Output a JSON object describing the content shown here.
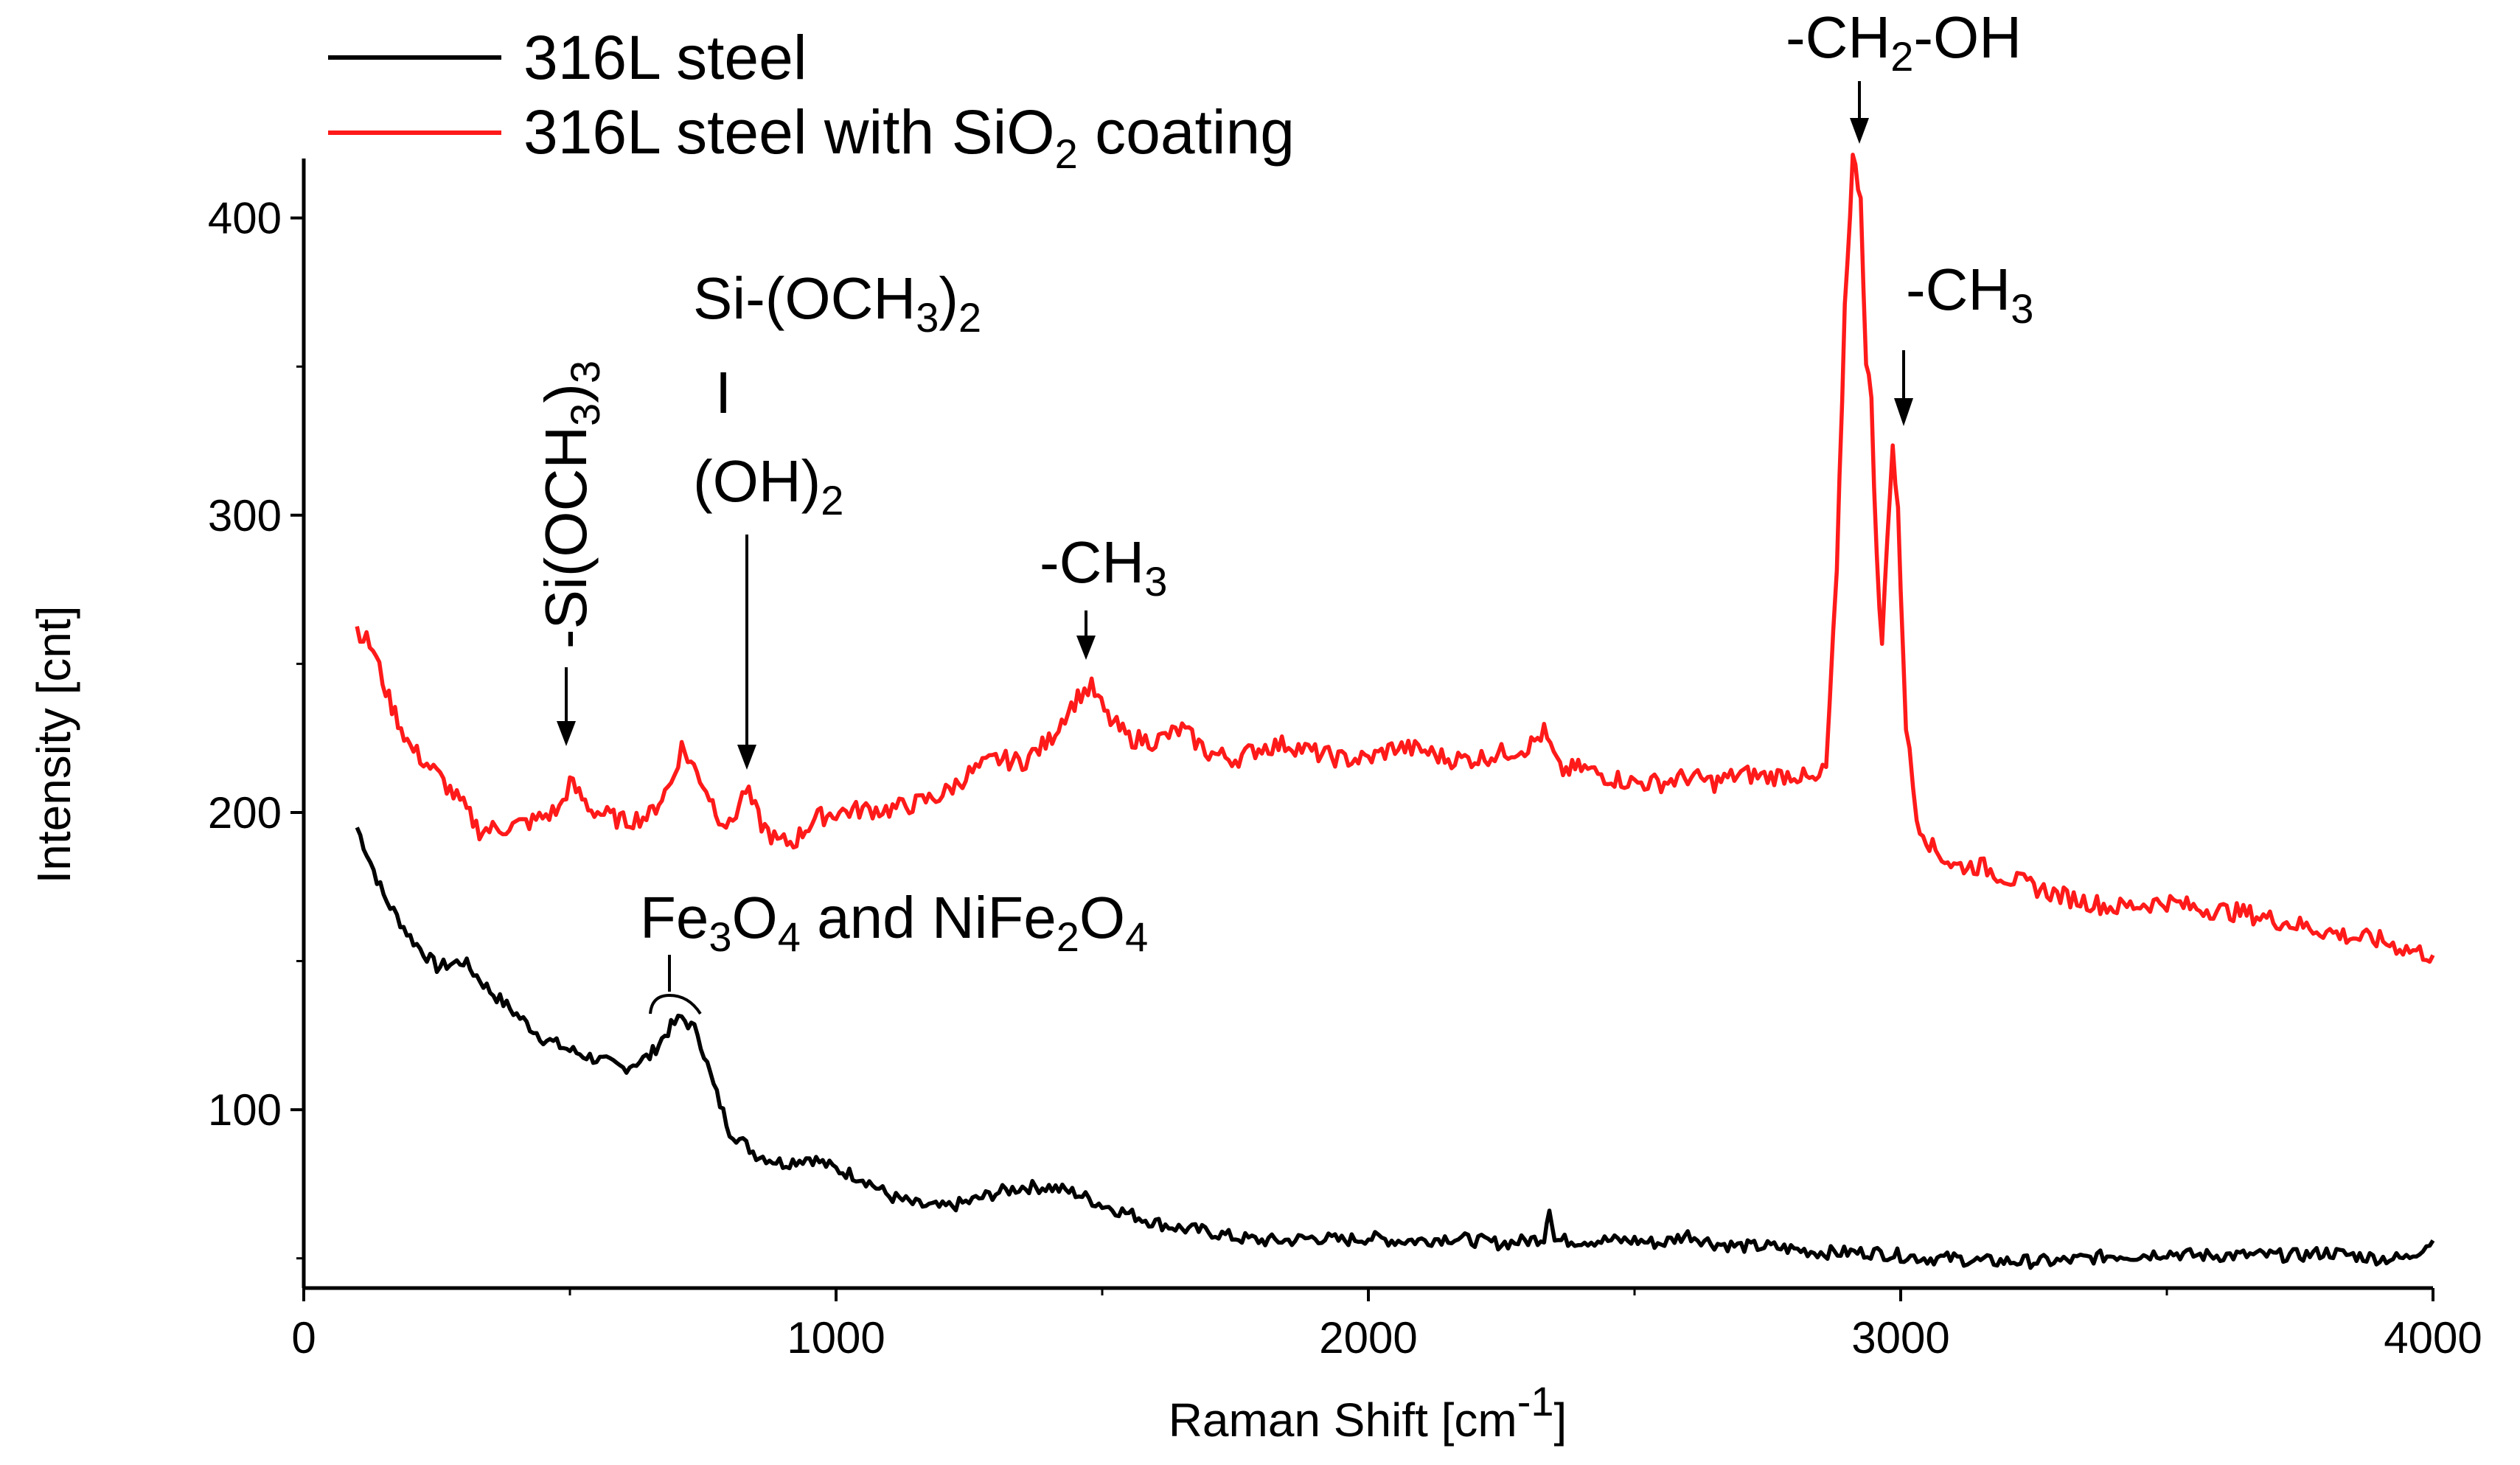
{
  "chart_data": {
    "type": "line",
    "xlabel": "Raman Shift [cm",
    "xlabel_sup": "-1",
    "xlabel_end": "]",
    "ylabel": "Intensity [cnt]",
    "xlim": [
      0,
      4000
    ],
    "ylim": [
      40,
      420
    ],
    "xticks": [
      0,
      1000,
      2000,
      3000,
      4000
    ],
    "yticks": [
      100,
      200,
      300,
      400
    ],
    "grid": false,
    "legend_position": "top-left",
    "colors": {
      "steel": "#000000",
      "coated": "#ff1a1a"
    },
    "legend": {
      "steel": "316L steel",
      "coated_pre": "316L steel with SiO",
      "coated_sub": "2",
      "coated_post": " coating"
    },
    "series": [
      {
        "name": "316L steel",
        "color": "#000000",
        "points": [
          [
            100,
            195
          ],
          [
            150,
            172
          ],
          [
            200,
            158
          ],
          [
            250,
            148
          ],
          [
            300,
            150
          ],
          [
            350,
            140
          ],
          [
            400,
            132
          ],
          [
            450,
            124
          ],
          [
            500,
            120
          ],
          [
            550,
            117
          ],
          [
            600,
            114
          ],
          [
            650,
            118
          ],
          [
            690,
            128
          ],
          [
            710,
            131
          ],
          [
            740,
            126
          ],
          [
            770,
            108
          ],
          [
            800,
            93
          ],
          [
            850,
            85
          ],
          [
            900,
            82
          ],
          [
            950,
            84
          ],
          [
            1000,
            80
          ],
          [
            1050,
            77
          ],
          [
            1100,
            71
          ],
          [
            1150,
            68
          ],
          [
            1200,
            67
          ],
          [
            1250,
            69
          ],
          [
            1300,
            72
          ],
          [
            1350,
            74
          ],
          [
            1400,
            74
          ],
          [
            1450,
            72
          ],
          [
            1500,
            68
          ],
          [
            1550,
            65
          ],
          [
            1600,
            62
          ],
          [
            1650,
            60
          ],
          [
            1700,
            59
          ],
          [
            1750,
            57
          ],
          [
            1800,
            56
          ],
          [
            1850,
            56
          ],
          [
            1900,
            57
          ],
          [
            1950,
            56
          ],
          [
            2000,
            57
          ],
          [
            2050,
            56
          ],
          [
            2100,
            56
          ],
          [
            2150,
            57
          ],
          [
            2200,
            56
          ],
          [
            2250,
            55
          ],
          [
            2300,
            56
          ],
          [
            2330,
            57
          ],
          [
            2340,
            68
          ],
          [
            2350,
            56
          ],
          [
            2400,
            56
          ],
          [
            2450,
            56
          ],
          [
            2500,
            56
          ],
          [
            2550,
            55
          ],
          [
            2600,
            58
          ],
          [
            2650,
            55
          ],
          [
            2700,
            54
          ],
          [
            2750,
            54
          ],
          [
            2800,
            53
          ],
          [
            2850,
            52
          ],
          [
            2900,
            52
          ],
          [
            2950,
            52
          ],
          [
            3000,
            51
          ],
          [
            3050,
            50
          ],
          [
            3100,
            50
          ],
          [
            3150,
            49
          ],
          [
            3200,
            49
          ],
          [
            3250,
            49
          ],
          [
            3300,
            49
          ],
          [
            3350,
            50
          ],
          [
            3400,
            51
          ],
          [
            3450,
            51
          ],
          [
            3500,
            52
          ],
          [
            3550,
            51
          ],
          [
            3600,
            51
          ],
          [
            3650,
            51
          ],
          [
            3700,
            51
          ],
          [
            3750,
            51
          ],
          [
            3800,
            52
          ],
          [
            3850,
            51
          ],
          [
            3900,
            50
          ],
          [
            3950,
            50
          ],
          [
            4000,
            56
          ]
        ]
      },
      {
        "name": "316L steel with SiO2 coating",
        "color": "#ff1a1a",
        "points": [
          [
            100,
            262
          ],
          [
            130,
            255
          ],
          [
            160,
            238
          ],
          [
            200,
            222
          ],
          [
            250,
            213
          ],
          [
            300,
            202
          ],
          [
            330,
            194
          ],
          [
            380,
            195
          ],
          [
            430,
            197
          ],
          [
            480,
            201
          ],
          [
            500,
            210
          ],
          [
            540,
            201
          ],
          [
            600,
            197
          ],
          [
            650,
            199
          ],
          [
            690,
            210
          ],
          [
            710,
            222
          ],
          [
            750,
            210
          ],
          [
            780,
            199
          ],
          [
            800,
            195
          ],
          [
            830,
            208
          ],
          [
            860,
            196
          ],
          [
            890,
            190
          ],
          [
            920,
            190
          ],
          [
            960,
            198
          ],
          [
            1000,
            200
          ],
          [
            1050,
            201
          ],
          [
            1100,
            201
          ],
          [
            1150,
            203
          ],
          [
            1200,
            206
          ],
          [
            1250,
            213
          ],
          [
            1300,
            218
          ],
          [
            1350,
            217
          ],
          [
            1400,
            224
          ],
          [
            1430,
            233
          ],
          [
            1460,
            240
          ],
          [
            1480,
            242
          ],
          [
            1510,
            232
          ],
          [
            1550,
            225
          ],
          [
            1600,
            224
          ],
          [
            1650,
            228
          ],
          [
            1700,
            220
          ],
          [
            1750,
            218
          ],
          [
            1800,
            222
          ],
          [
            1850,
            223
          ],
          [
            1900,
            220
          ],
          [
            1950,
            218
          ],
          [
            2000,
            218
          ],
          [
            2050,
            222
          ],
          [
            2100,
            221
          ],
          [
            2150,
            218
          ],
          [
            2200,
            218
          ],
          [
            2250,
            220
          ],
          [
            2300,
            222
          ],
          [
            2330,
            227
          ],
          [
            2360,
            214
          ],
          [
            2400,
            215
          ],
          [
            2450,
            212
          ],
          [
            2500,
            210
          ],
          [
            2550,
            210
          ],
          [
            2600,
            212
          ],
          [
            2650,
            210
          ],
          [
            2700,
            213
          ],
          [
            2750,
            212
          ],
          [
            2800,
            213
          ],
          [
            2840,
            210
          ],
          [
            2860,
            215
          ],
          [
            2880,
            280
          ],
          [
            2895,
            370
          ],
          [
            2910,
            420
          ],
          [
            2925,
            408
          ],
          [
            2935,
            350
          ],
          [
            2945,
            340
          ],
          [
            2955,
            285
          ],
          [
            2965,
            255
          ],
          [
            2975,
            295
          ],
          [
            2985,
            323
          ],
          [
            2995,
            300
          ],
          [
            3010,
            230
          ],
          [
            3030,
            198
          ],
          [
            3060,
            188
          ],
          [
            3100,
            182
          ],
          [
            3150,
            182
          ],
          [
            3200,
            178
          ],
          [
            3250,
            175
          ],
          [
            3300,
            172
          ],
          [
            3350,
            170
          ],
          [
            3400,
            168
          ],
          [
            3450,
            169
          ],
          [
            3500,
            170
          ],
          [
            3550,
            168
          ],
          [
            3600,
            167
          ],
          [
            3650,
            166
          ],
          [
            3700,
            164
          ],
          [
            3750,
            162
          ],
          [
            3800,
            160
          ],
          [
            3850,
            158
          ],
          [
            3900,
            157
          ],
          [
            3950,
            154
          ],
          [
            4000,
            152
          ]
        ]
      }
    ],
    "annotations": {
      "si_och3_3_main": "-Si(OCH",
      "si_och3_3_sub1": "3",
      "si_och3_3_paren": ")",
      "si_och3_3_sub2": "3",
      "si_och3_2_main": "Si-(OCH",
      "si_och3_2_sub1": "3",
      "si_och3_2_paren": ")",
      "si_och3_2_sub2": "2",
      "bar": "I",
      "oh2_main": "(OH)",
      "oh2_sub": "2",
      "ch3_1450_main": "-CH",
      "ch3_1450_sub": "3",
      "ch2oh_pre": "-CH",
      "ch2oh_sub": "2",
      "ch2oh_post": "-OH",
      "ch3_3000_main": "-CH",
      "ch3_3000_sub": "3",
      "fe_a": "Fe",
      "fe_b": "3",
      "fe_c": "O",
      "fe_d": "4",
      "fe_e": " and NiFe",
      "fe_f": "2",
      "fe_g": "O",
      "fe_h": "4"
    }
  }
}
